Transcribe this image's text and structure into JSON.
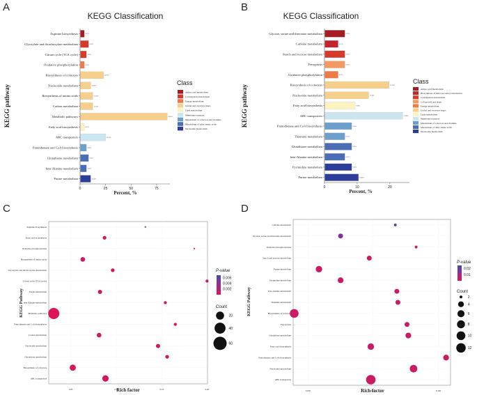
{
  "panels": {
    "A": {
      "letter": "A",
      "title": "KEGG Classification"
    },
    "B": {
      "letter": "B",
      "title": "KEGG Classification"
    },
    "C": {
      "letter": "C"
    },
    "D": {
      "letter": "D"
    }
  },
  "bar_axes": {
    "ylabel": "KEGG pathway",
    "xlabel": "Percent, %",
    "legend_title": "Class"
  },
  "dot_axes": {
    "ylabel": "KEGG Pathway",
    "xlabel": "Rich factor",
    "pvalue_title": "P-value",
    "count_title": "Count"
  },
  "colors": {
    "Amino acid metabolism": "#a51c22",
    "Carbohydrate metabolism": "#d63a2b",
    "Energy metabolism": "#ef7a48",
    "Global and overview maps": "#f6cf8b",
    "Membrane transport": "#cbe6f1",
    "Metabolism of cofactors and vitamins": "#6d9fcd",
    "Metabolism of other amino acids": "#4a6db6",
    "Nucleotide metabolism": "#2f3d9a",
    "Biosynthesis of other secondary metabolites": "#c3232c",
    "Cell growth and death": "#f29a62",
    "Lipid metabolism": "#fbf4c0",
    "Transport and catabolism": "#a8d2e6",
    "pvalue_low": "#e6114f",
    "pvalue_high": "#3d4fa8"
  },
  "chart_data": [
    {
      "type": "bar",
      "panel": "A",
      "title": "KEGG Classification",
      "xlabel": "Percent, %",
      "ylabel": "KEGG pathway",
      "xlim": [
        0,
        88
      ],
      "xticks": [
        0,
        25,
        50,
        75
      ],
      "legend_title": "Class",
      "legend": [
        "Amino acid metabolism",
        "Carbohydrate metabolism",
        "Energy metabolism",
        "Global and overview maps",
        "Lipid metabolism",
        "Membrane transport",
        "Metabolism of cofactors and vitamins",
        "Metabolism of other amino acids",
        "Nucleotide metabolism"
      ],
      "categories": [
        "Arginine biosynthesis",
        "Glyoxylate and dicarboxylate metabolism",
        "Citrate cycle (TCA cycle)",
        "Oxidative phosphorylation",
        "Biosynthesis of cofactors",
        "Nucleotide metabolism",
        "Biosynthesis of amino acids",
        "Carbon metabolism",
        "Metabolic pathways",
        "Fatty acid biosynthesis",
        "ABC transporters",
        "Pantothenate and CoA biosynthesis",
        "Glutathione metabolism",
        "beta-Alanine metabolism",
        "Purine metabolism"
      ],
      "values": [
        4.17,
        8.33,
        6.25,
        4.17,
        22.92,
        10.42,
        12.5,
        12.5,
        85.42,
        4.17,
        25.0,
        6.25,
        8.33,
        6.25,
        10.42
      ],
      "value_labels": [
        "4.17%",
        "8.33%",
        "6.25%",
        "4.17%",
        "22.92%",
        "10.42%",
        "12.50%",
        "12.50%",
        "85.42%",
        "4.17%",
        "25.00%",
        "6.25%",
        "8.33%",
        "6.25%",
        "10.42%"
      ],
      "classes": [
        "Amino acid metabolism",
        "Carbohydrate metabolism",
        "Carbohydrate metabolism",
        "Energy metabolism",
        "Global and overview maps",
        "Global and overview maps",
        "Global and overview maps",
        "Global and overview maps",
        "Global and overview maps",
        "Lipid metabolism",
        "Membrane transport",
        "Metabolism of cofactors and vitamins",
        "Metabolism of other amino acids",
        "Metabolism of other amino acids",
        "Nucleotide metabolism"
      ]
    },
    {
      "type": "bar",
      "panel": "B",
      "title": "KEGG Classification",
      "xlabel": "Percent, %",
      "ylabel": "KEGG pathway",
      "xlim": [
        0,
        26
      ],
      "xticks": [
        0,
        10,
        20
      ],
      "legend_title": "Class",
      "legend": [
        "Amino acid metabolism",
        "Biosynthesis of other secondary metabolites",
        "Carbohydrate metabolism",
        "Cell growth and death",
        "Energy metabolism",
        "Global and overview maps",
        "Lipid metabolism",
        "Membrane transport",
        "Metabolism of cofactors and vitamins",
        "Metabolism of other amino acids",
        "Nucleotide metabolism"
      ],
      "categories": [
        "Glycine, serine and threonine metabolism",
        "Caffeine metabolism",
        "Starch and sucrose metabolism",
        "Ferroptosis",
        "Oxidative phosphorylation",
        "Biosynthesis of cofactors",
        "Nucleotide metabolism",
        "Fatty acid biosynthesis",
        "ABC transporters",
        "Pantothenate and CoA biosynthesis",
        "Thiamine metabolism",
        "Glutathione metabolism",
        "beta-Alanine metabolism",
        "Pyrimidine metabolism",
        "Purine metabolism"
      ],
      "values": [
        6.25,
        4.17,
        6.25,
        6.25,
        4.17,
        19.79,
        13.54,
        9.38,
        23.96,
        8.33,
        6.25,
        8.33,
        6.25,
        8.33,
        10.42
      ],
      "value_labels": [
        "6.25%",
        "4.17%",
        "6.25%",
        "6.25%",
        "4.17%",
        "19.79%",
        "13.54%",
        "9.38%",
        "23.96%",
        "8.33%",
        "6.25%",
        "8.33%",
        "6.25%",
        "8.33%",
        "10.42%"
      ],
      "classes": [
        "Amino acid metabolism",
        "Biosynthesis of other secondary metabolites",
        "Carbohydrate metabolism",
        "Cell growth and death",
        "Energy metabolism",
        "Global and overview maps",
        "Global and overview maps",
        "Lipid metabolism",
        "Membrane transport",
        "Metabolism of cofactors and vitamins",
        "Metabolism of cofactors and vitamins",
        "Metabolism of other amino acids",
        "Metabolism of other amino acids",
        "Nucleotide metabolism",
        "Nucleotide metabolism"
      ]
    },
    {
      "type": "scatter",
      "panel": "C",
      "xlabel": "Rich factor",
      "ylabel": "KEGG Pathway",
      "xlim": [
        0.0255,
        0.2005
      ],
      "xticks": [
        0.05,
        0.1,
        0.15,
        0.2
      ],
      "xtick_labels": [
        "0.05",
        "0.10",
        "0.15",
        "0.20"
      ],
      "pvalue_range": [
        0.0,
        0.007
      ],
      "pvalue_ticks": [
        0.006,
        0.004,
        0.002
      ],
      "pvalue_tick_labels": [
        "0.006",
        "0.004",
        "0.002"
      ],
      "count_ticks": [
        20,
        40,
        60
      ],
      "categories": [
        "Arginine biosynthesis",
        "Fatty acid biosynthesis",
        "Oxidative phosphorylation",
        "Biosynthesis of amino acids",
        "Glyoxylate and dicarboxylate metabolism",
        "Citrate cycle (TCA cycle)",
        "Purine metabolism",
        "beta-Alanine metabolism",
        "Metabolic pathways",
        "Pantothenate and CoA biosynthesis",
        "Carbon metabolism",
        "Nucleotide metabolism",
        "Glutathione metabolism",
        "Biosynthesis of cofactors",
        "ABC transporters"
      ],
      "x": [
        0.132,
        0.087,
        0.186,
        0.063,
        0.096,
        0.2,
        0.082,
        0.154,
        0.031,
        0.165,
        0.081,
        0.146,
        0.156,
        0.052,
        0.088
      ],
      "count": [
        2,
        4,
        2,
        6,
        4,
        3,
        5,
        3,
        41,
        3,
        6,
        5,
        4,
        11,
        12
      ],
      "pvalue": [
        0.0065,
        0.0012,
        0.0018,
        0.0012,
        0.0008,
        0.0015,
        0.0012,
        0.0012,
        0.0004,
        0.0008,
        0.0012,
        0.0008,
        0.0012,
        0.0008,
        0.0009
      ]
    },
    {
      "type": "scatter",
      "panel": "D",
      "xlabel": "Rich factor",
      "ylabel": "KEGG Pathway",
      "xlim": [
        0.0443,
        0.1047
      ],
      "xticks": [
        0.05,
        0.075,
        0.1
      ],
      "xtick_labels": [
        "0.050",
        "0.075",
        "0.100"
      ],
      "pvalue_range": [
        0.0,
        0.025
      ],
      "pvalue_ticks": [
        0.02,
        0.01
      ],
      "pvalue_tick_labels": [
        "0.02",
        "0.01"
      ],
      "count_ticks": [
        2,
        4,
        6,
        8,
        10,
        12
      ],
      "categories": [
        "Caffeine metabolism",
        "Glycine, serine and threonine metabolism",
        "Oxidative phosphorylation",
        "Starch and sucrose metabolism",
        "Purine metabolism",
        "Pyrimidine metabolism",
        "beta-Alanine metabolism",
        "Thiamine metabolism",
        "Biosynthesis of cofactors",
        "Ferroptosis",
        "Glutathione metabolism",
        "Fatty acid biosynthesis",
        "Pantothenate and CoA biosynthesis",
        "Nucleotide metabolism",
        "ABC transporters"
      ],
      "x": [
        0.0835,
        0.0625,
        0.0915,
        0.0735,
        0.0542,
        0.0625,
        0.0841,
        0.0845,
        0.0447,
        0.088,
        0.0885,
        0.0741,
        0.103,
        0.0905,
        0.0741
      ],
      "count": [
        2,
        3,
        2,
        3,
        5,
        4,
        3,
        3,
        10,
        3,
        4,
        5,
        4,
        7,
        12
      ],
      "pvalue": [
        0.022,
        0.016,
        0.0045,
        0.0048,
        0.0045,
        0.0045,
        0.0045,
        0.0045,
        0.0045,
        0.0045,
        0.0045,
        0.0045,
        0.0045,
        0.0045,
        0.0045
      ]
    }
  ]
}
